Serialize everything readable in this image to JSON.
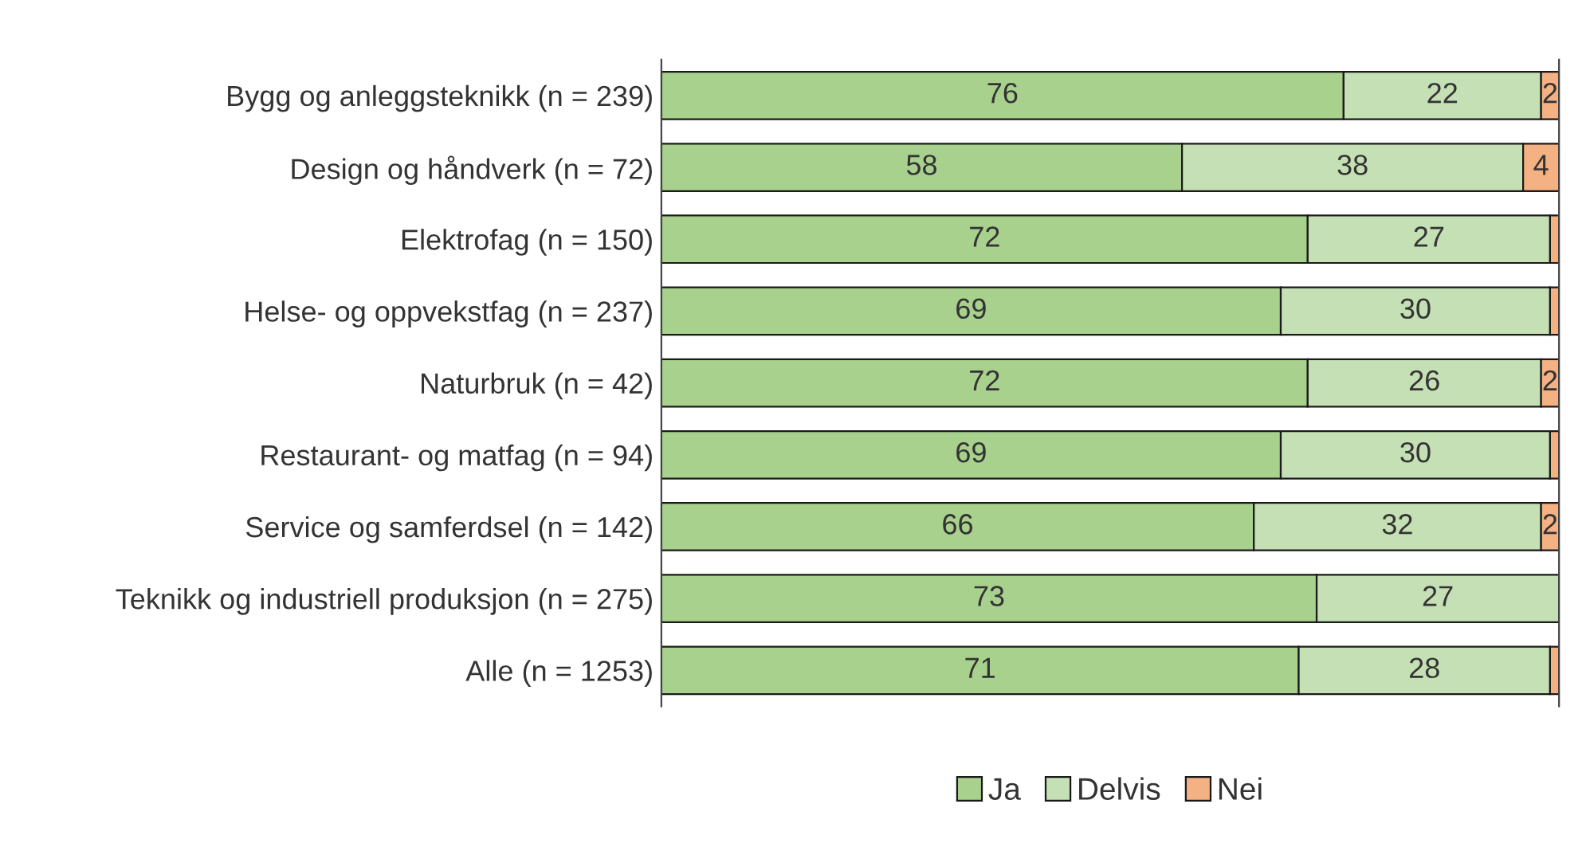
{
  "chart_data": {
    "type": "bar",
    "orientation": "horizontal",
    "stacked": true,
    "categories": [
      "Bygg og anleggsteknikk (n = 239)",
      "Design og håndverk (n = 72)",
      "Elektrofag (n = 150)",
      "Helse- og oppvekstfag (n = 237)",
      "Naturbruk (n = 42)",
      "Restaurant- og matfag (n = 94)",
      "Service og samferdsel (n = 142)",
      "Teknikk og industriell produksjon (n = 275)",
      "Alle (n = 1253)"
    ],
    "series": [
      {
        "name": "Ja",
        "color": "#a9d18e",
        "values": [
          76,
          58,
          72,
          69,
          72,
          69,
          66,
          73,
          71
        ],
        "value_labels": [
          "76",
          "58",
          "72",
          "69",
          "72",
          "69",
          "66",
          "73",
          "71"
        ]
      },
      {
        "name": "Delvis",
        "color": "#c5e0b4",
        "values": [
          22,
          38,
          27,
          30,
          26,
          30,
          32,
          27,
          28
        ],
        "value_labels": [
          "22",
          "38",
          "27",
          "30",
          "26",
          "30",
          "32",
          "27",
          "28"
        ]
      },
      {
        "name": "Nei",
        "color": "#f4b183",
        "values": [
          2,
          4,
          1,
          1,
          2,
          1,
          2,
          0,
          1
        ],
        "value_labels": [
          "2",
          "4",
          null,
          null,
          "2",
          null,
          "2",
          null,
          null
        ]
      }
    ],
    "xlim": [
      0,
      100
    ],
    "tick_labels": "y",
    "grid": false,
    "legend": "bottom"
  }
}
